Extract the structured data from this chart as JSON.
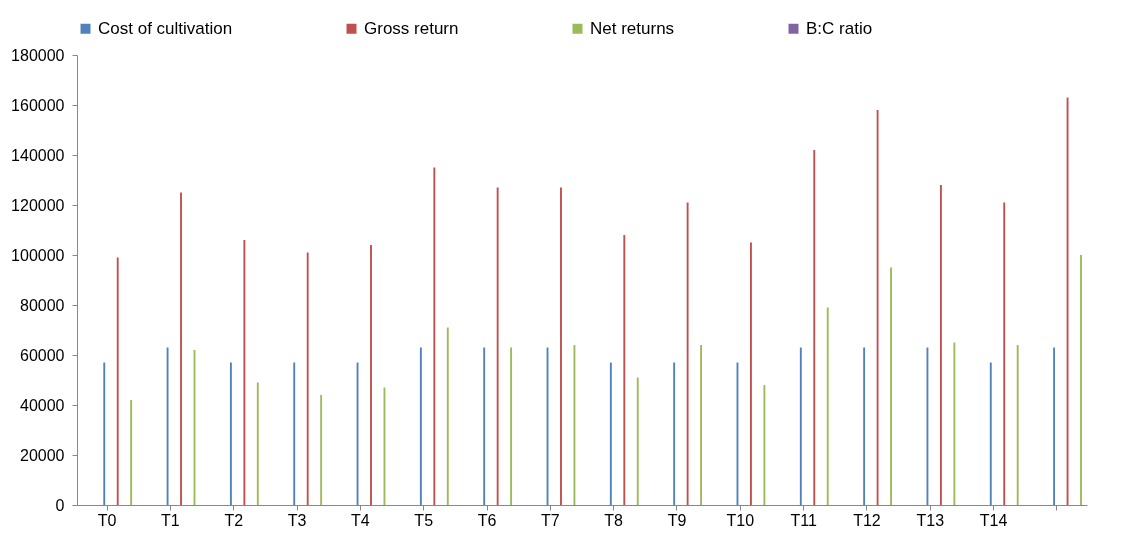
{
  "chart_data": {
    "type": "bar",
    "categories": [
      "T0",
      "T1",
      "T2",
      "T3",
      "T4",
      "T5",
      "T6",
      "T7",
      "T8",
      "T9",
      "T10",
      "T11",
      "T12",
      "T13",
      "T14",
      null
    ],
    "series": [
      {
        "name": "Cost of cultivation",
        "color": "#4f81bd",
        "values": [
          57000,
          63000,
          57000,
          57000,
          57000,
          63000,
          63000,
          63000,
          57000,
          57000,
          57000,
          63000,
          63000,
          63000,
          57000,
          63000
        ]
      },
      {
        "name": "Gross return",
        "color": "#c0504d",
        "values": [
          99000,
          125000,
          106000,
          101000,
          104000,
          135000,
          127000,
          127000,
          108000,
          121000,
          105000,
          142000,
          158000,
          128000,
          121000,
          163000
        ]
      },
      {
        "name": "Net returns",
        "color": "#9bbb59",
        "values": [
          42000,
          62000,
          49000,
          44000,
          47000,
          71000,
          63000,
          64000,
          51000,
          64000,
          48000,
          79000,
          95000,
          65000,
          64000,
          100000
        ]
      },
      {
        "name": "B:C ratio",
        "color": "#8064a2",
        "values": [
          0,
          0,
          0,
          0,
          0,
          0,
          0,
          0,
          0,
          0,
          0,
          0,
          0,
          0,
          0,
          0
        ]
      }
    ],
    "ylim": [
      0,
      180000
    ],
    "yticks": [
      0,
      20000,
      40000,
      60000,
      80000,
      100000,
      120000,
      140000,
      160000,
      180000
    ],
    "grid": false,
    "legend": "top"
  }
}
